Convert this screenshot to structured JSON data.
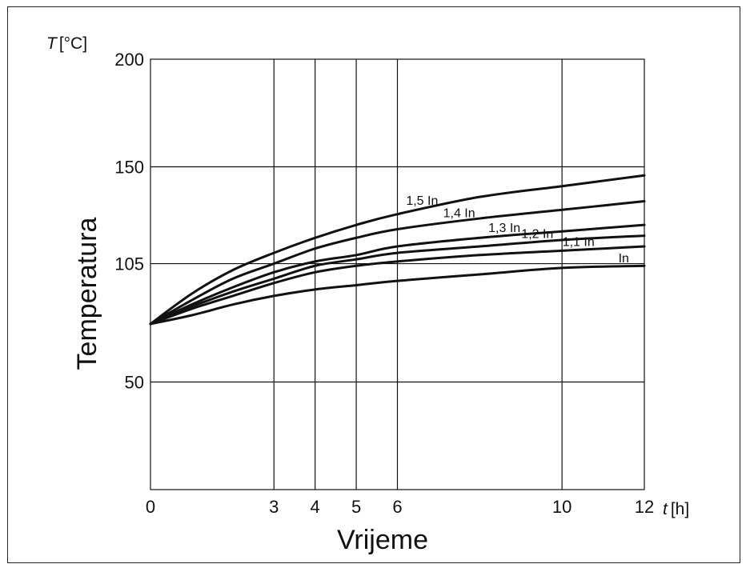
{
  "chart_data": {
    "type": "line",
    "ylabel": "Temperatura",
    "xlabel": "Vrijeme",
    "y_axis_symbol": "T",
    "y_axis_unit": "[°C]",
    "x_axis_symbol": "t",
    "x_axis_unit": "[h]",
    "xlim": [
      0,
      12
    ],
    "ylim": [
      0,
      200
    ],
    "x_ticks": [
      0,
      3,
      4,
      5,
      6,
      10,
      12
    ],
    "y_ticks": [
      50,
      105,
      150,
      200
    ],
    "grid": true,
    "series": [
      {
        "name": "1,5 In",
        "x": [
          0,
          1,
          2,
          3,
          4,
          5,
          6,
          8,
          10,
          12
        ],
        "y": [
          77,
          91,
          102,
          110,
          117,
          123,
          128,
          136,
          141,
          146
        ]
      },
      {
        "name": "1,4 In",
        "x": [
          0,
          1,
          2,
          3,
          4,
          5,
          6,
          8,
          10,
          12
        ],
        "y": [
          77,
          88,
          98,
          105,
          112,
          117,
          121,
          126,
          130,
          134
        ]
      },
      {
        "name": "1,3 In",
        "x": [
          0,
          1,
          2,
          3,
          4,
          5,
          6,
          8,
          10,
          12
        ],
        "y": [
          77,
          86,
          94,
          101,
          106,
          109,
          113,
          117,
          120,
          123
        ]
      },
      {
        "name": "1,2 In",
        "x": [
          0,
          1,
          2,
          3,
          4,
          5,
          6,
          8,
          10,
          12
        ],
        "y": [
          77,
          85,
          92,
          98,
          104,
          107,
          110,
          113,
          116,
          118
        ]
      },
      {
        "name": "1,1 In",
        "x": [
          0,
          1,
          2,
          3,
          4,
          5,
          6,
          8,
          10,
          12
        ],
        "y": [
          77,
          84,
          90,
          96,
          101,
          104,
          106,
          109,
          111,
          113
        ]
      },
      {
        "name": "In",
        "x": [
          0,
          1,
          2,
          3,
          4,
          5,
          6,
          8,
          10,
          12
        ],
        "y": [
          77,
          81,
          86,
          90,
          93,
          95,
          97,
          100,
          103,
          104
        ]
      }
    ]
  }
}
